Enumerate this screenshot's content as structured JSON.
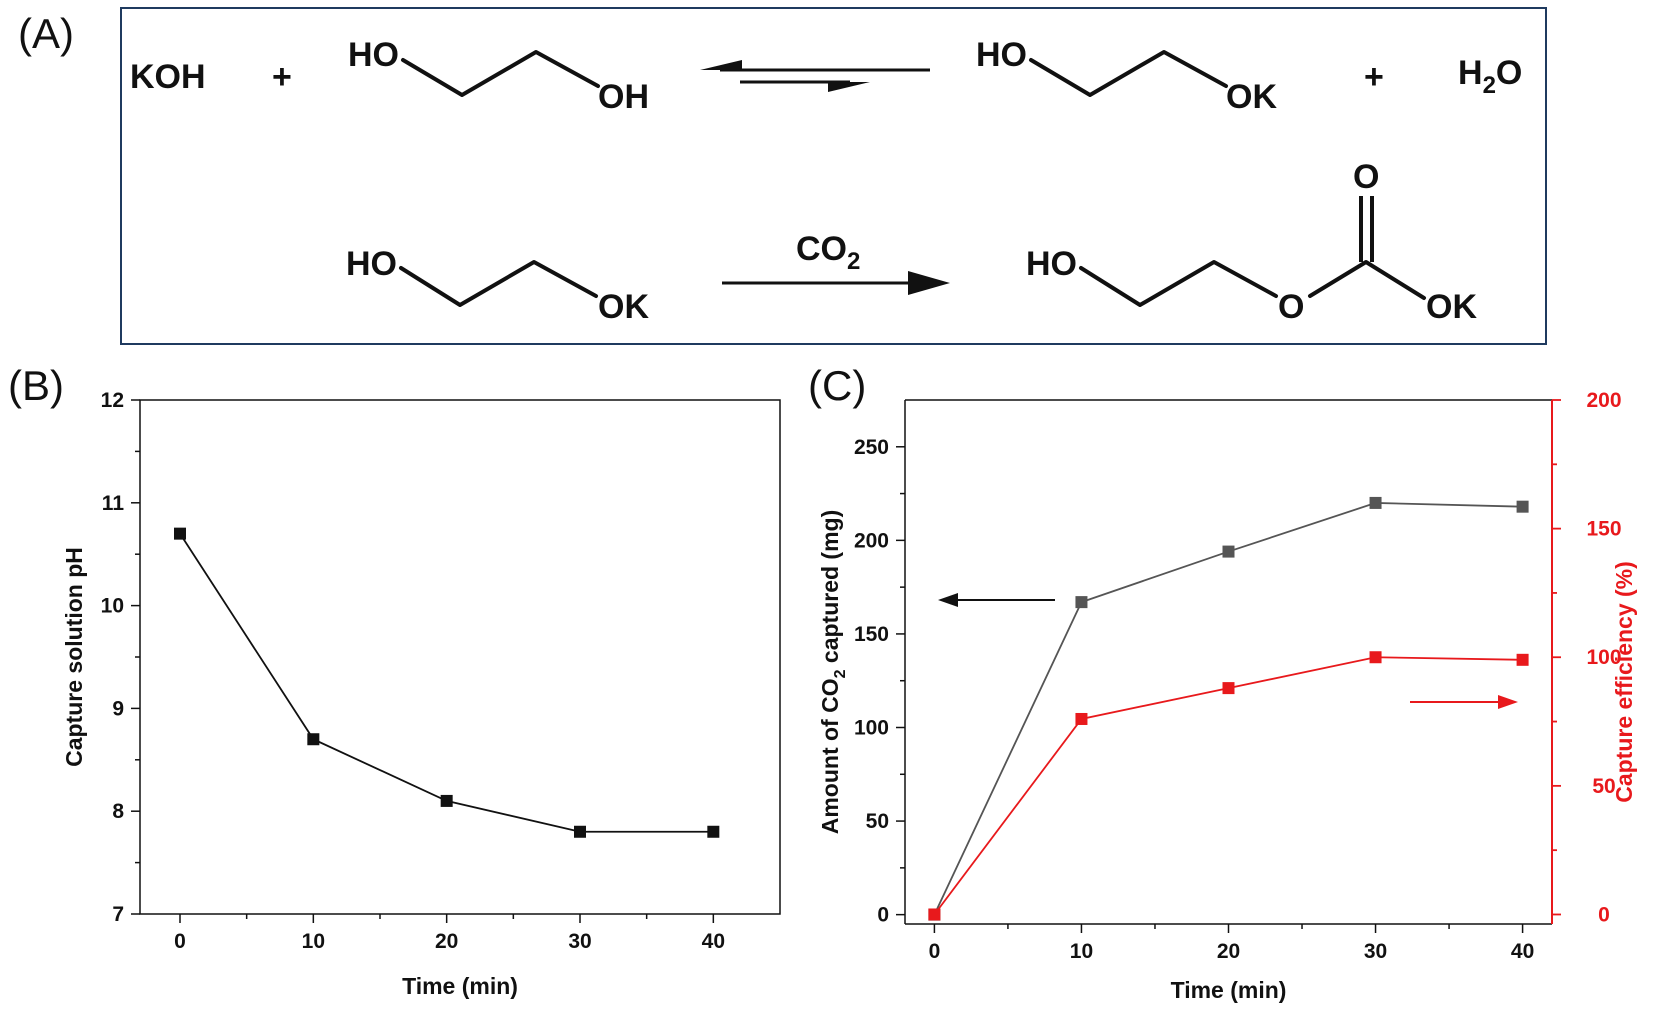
{
  "panels": {
    "a_label": "(A)",
    "b_label": "(B)",
    "c_label": "(C)"
  },
  "scheme": {
    "reaction1": {
      "reactant1": "KOH",
      "plus1": "+",
      "eg_ho": "HO",
      "eg_oh": "OH",
      "prod_ho": "HO",
      "prod_ok": "OK",
      "plus2": "+",
      "water_h": "H",
      "water_sub": "2",
      "water_o": "O"
    },
    "reaction2": {
      "reactant_ho": "HO",
      "reactant_ok": "OK",
      "reagent_co": "CO",
      "reagent_sub": "2",
      "prod_ho": "HO",
      "prod_o_ester": "O",
      "prod_o_carbonyl": "O",
      "prod_ok": "OK"
    }
  },
  "chart_data": [
    {
      "type": "line",
      "panel": "(B)",
      "xlabel": "Time (min)",
      "ylabel": "Capture solution pH",
      "xlim": [
        -3,
        45
      ],
      "ylim": [
        7,
        12
      ],
      "xticks": [
        0,
        10,
        20,
        30,
        40
      ],
      "yticks": [
        7,
        8,
        9,
        10,
        11,
        12
      ],
      "series": [
        {
          "x": [
            0,
            10,
            20,
            30,
            40
          ],
          "y": [
            10.7,
            8.7,
            8.1,
            7.8,
            7.8
          ],
          "color": "#111111",
          "marker": "square"
        }
      ]
    },
    {
      "type": "line",
      "panel": "(C)",
      "xlabel": "Time (min)",
      "ylabel_left_pre": "Amount of CO",
      "ylabel_left_sub": "2",
      "ylabel_left_post": " captured (mg)",
      "ylabel_right": "Capture efficiency (%)",
      "xlim": [
        -2,
        42
      ],
      "ylim_left": [
        -5,
        275
      ],
      "ylim_right": [
        -3.7,
        200
      ],
      "xticks": [
        0,
        10,
        20,
        30,
        40
      ],
      "yticks_left": [
        0,
        50,
        100,
        150,
        200,
        250
      ],
      "yticks_right": [
        0,
        50,
        100,
        150,
        200
      ],
      "left_color": "#111111",
      "right_color": "#e8191c",
      "series": [
        {
          "axis": "left",
          "x": [
            0,
            10,
            20,
            30,
            40
          ],
          "y": [
            0,
            167,
            194,
            220,
            218
          ],
          "color": "#555555",
          "marker": "square"
        },
        {
          "axis": "right",
          "x": [
            0,
            10,
            20,
            30,
            40
          ],
          "y": [
            0,
            76,
            88,
            100,
            99
          ],
          "color": "#e8191c",
          "marker": "square"
        }
      ]
    }
  ]
}
